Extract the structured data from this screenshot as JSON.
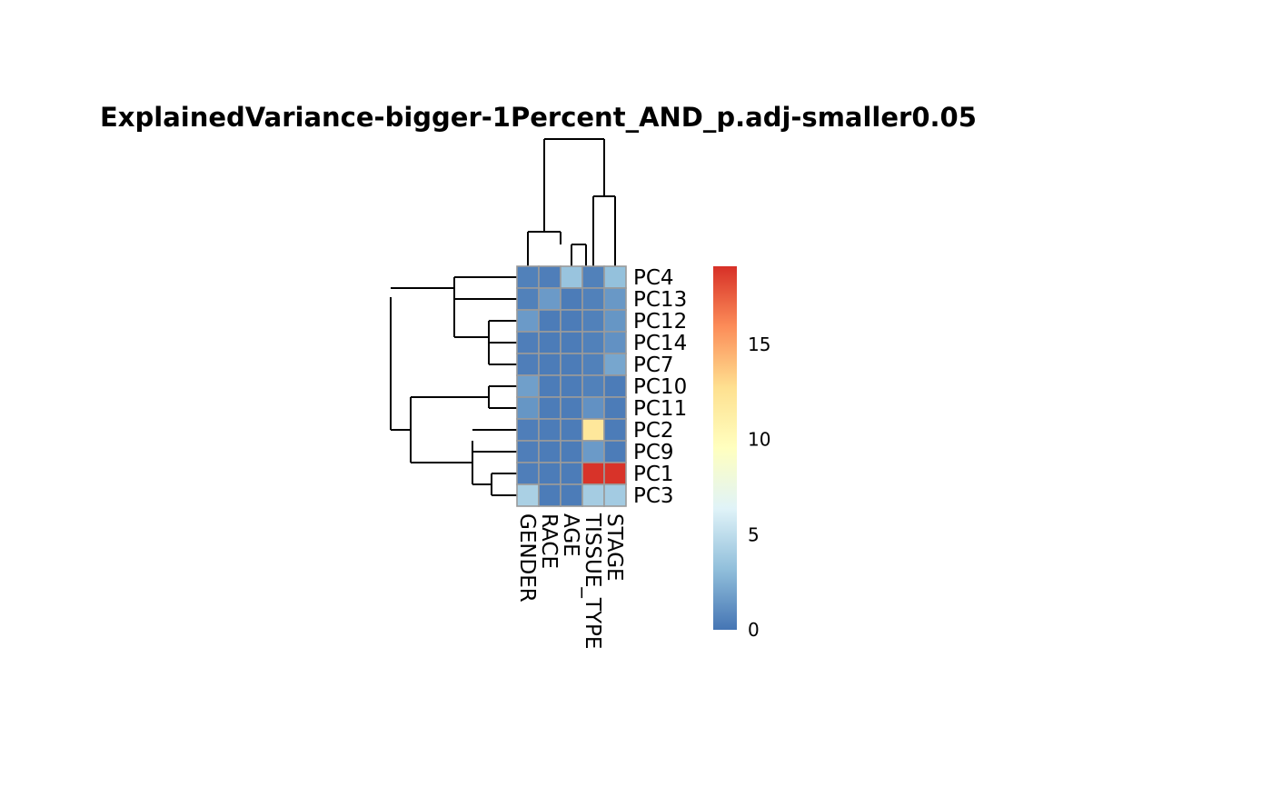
{
  "chart_data": {
    "type": "heatmap",
    "title": "ExplainedVariance-bigger-1Percent_AND_p.adj-smaller0.05",
    "rows": [
      "PC4",
      "PC13",
      "PC12",
      "PC14",
      "PC7",
      "PC10",
      "PC11",
      "PC2",
      "PC9",
      "PC1",
      "PC3"
    ],
    "columns": [
      "GENDER",
      "RACE",
      "AGE",
      "TISSUE_TYPE",
      "STAGE"
    ],
    "values": [
      [
        0.5,
        0.4,
        3.5,
        0.5,
        3.3
      ],
      [
        0.5,
        1.6,
        0.3,
        0.5,
        1.5
      ],
      [
        1.6,
        0.3,
        0.3,
        0.5,
        1.4
      ],
      [
        0.4,
        0.3,
        0.3,
        0.5,
        1.2
      ],
      [
        0.4,
        0.3,
        0.3,
        0.5,
        2.1
      ],
      [
        1.8,
        0.3,
        0.3,
        0.5,
        0.3
      ],
      [
        1.4,
        0.3,
        0.3,
        1.2,
        0.3
      ],
      [
        0.4,
        0.3,
        0.3,
        12.0,
        0.3
      ],
      [
        0.4,
        0.3,
        0.3,
        1.6,
        0.3
      ],
      [
        0.4,
        0.3,
        0.3,
        19.0,
        19.0
      ],
      [
        4.2,
        0.3,
        0.3,
        4.0,
        3.9
      ]
    ],
    "legend": {
      "ticks": [
        0,
        5,
        10,
        15
      ],
      "range": [
        0,
        19.1
      ],
      "colors": [
        "#4575B4",
        "#91BFDB",
        "#E0F3F8",
        "#FFFFBF",
        "#FEE090",
        "#FC8D59",
        "#D73027"
      ]
    },
    "cell_border_color": "#9A9A9A"
  }
}
